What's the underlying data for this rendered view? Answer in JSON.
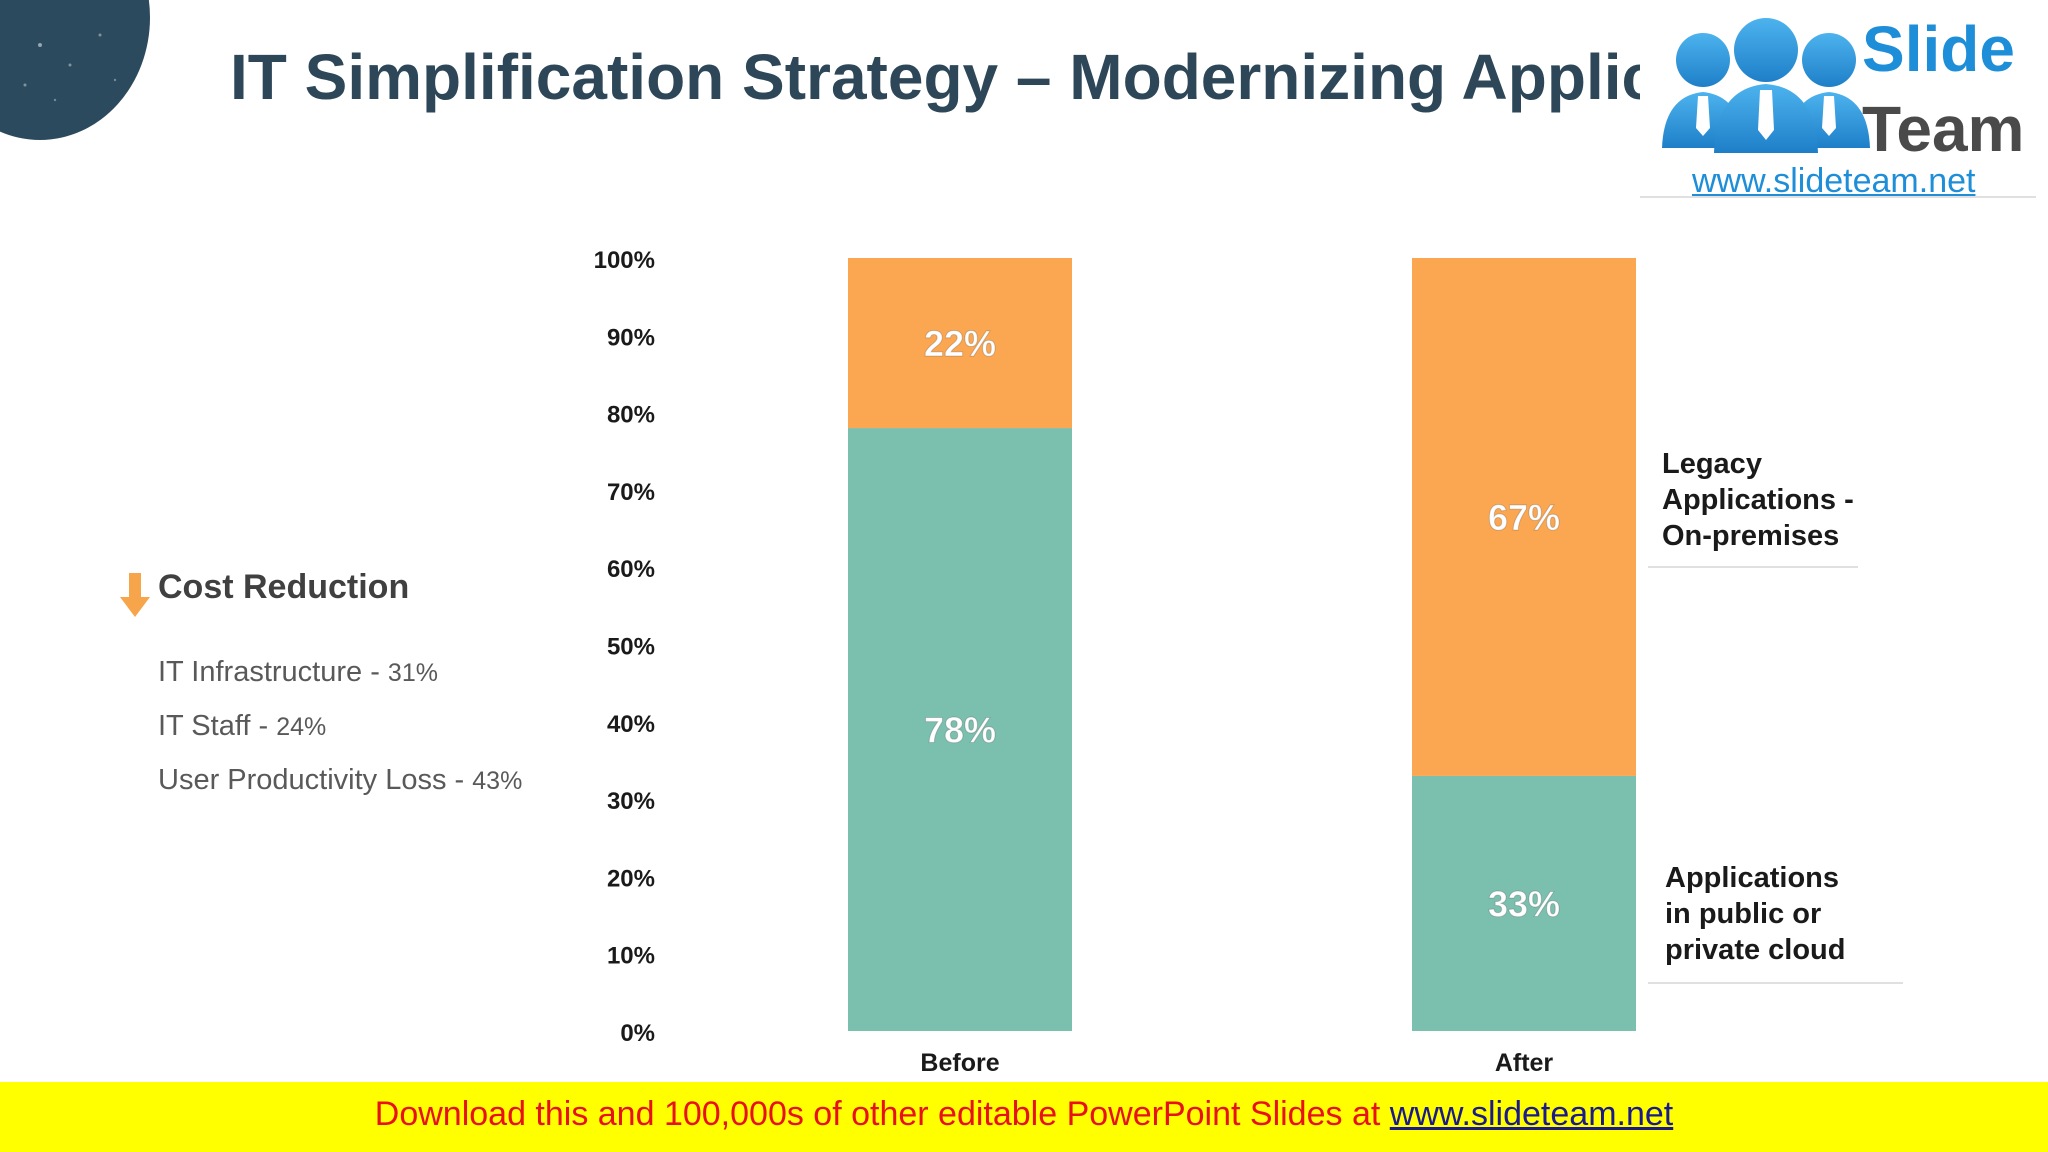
{
  "title": "IT Simplification Strategy – Modernizing Applic",
  "logo": {
    "word1": "Slide",
    "word2": "Team",
    "url": "www.slideteam.net",
    "colors": {
      "blue": "#1e8ed8",
      "gray": "#4a4a4a"
    }
  },
  "cost_reduction": {
    "icon": "down-arrow-icon",
    "title": "Cost Reduction",
    "items": [
      {
        "label": "IT Infrastructure - ",
        "value": "31%"
      },
      {
        "label": "IT Staff - ",
        "value": "24%"
      },
      {
        "label": "User Productivity Loss - ",
        "value": "43%"
      }
    ]
  },
  "chart_data": {
    "type": "bar",
    "stacked": true,
    "categories": [
      "Before",
      "After"
    ],
    "series": [
      {
        "name": "Applications in public or private cloud",
        "values": [
          78,
          33
        ],
        "color": "#7bbfaf",
        "labels": [
          "78%",
          "33%"
        ]
      },
      {
        "name": "Legacy Applications - On-premises",
        "values": [
          22,
          67
        ],
        "color": "#fba650",
        "labels": [
          "22%",
          "67%"
        ]
      }
    ],
    "ylim": [
      0,
      100
    ],
    "yticks": [
      0,
      10,
      20,
      30,
      40,
      50,
      60,
      70,
      80,
      90,
      100
    ],
    "yticklabels": [
      "0%",
      "10%",
      "20%",
      "30%",
      "40%",
      "50%",
      "60%",
      "70%",
      "80%",
      "90%",
      "100%"
    ],
    "xlabel": "",
    "ylabel": "",
    "grid": false,
    "legend_placement": "right"
  },
  "legend": {
    "legacy_lines": [
      "Legacy",
      "Applications -",
      "On-premises"
    ],
    "cloud_lines": [
      "Applications",
      "in public or",
      "private cloud"
    ]
  },
  "banner": {
    "text": "Download this and 100,000s of other editable PowerPoint Slides at ",
    "link": "www.slideteam.net",
    "background": "#ffff00",
    "text_color": "#e8111a",
    "link_color": "#1a1a8c"
  }
}
